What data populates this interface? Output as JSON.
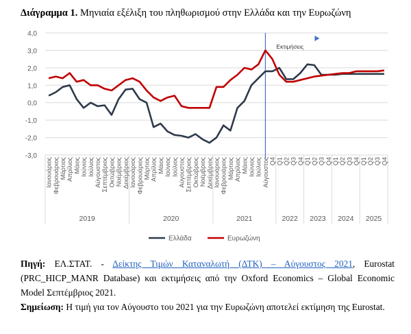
{
  "title": {
    "bold": "Διάγραμμα 1.",
    "text": " Μηνιαία  εξέλιξη του πληθωρισμού στην Ελλάδα και την Ευρωζώνη"
  },
  "chart_data": {
    "type": "line",
    "ylim": [
      -3,
      4
    ],
    "yticks": [
      "4,0",
      "3,0",
      "2,0",
      "1,0",
      "0,0",
      "-1,0",
      "-2,0",
      "-3,0"
    ],
    "ytick_values": [
      4,
      3,
      2,
      1,
      0,
      -1,
      -2,
      -3
    ],
    "grid": true,
    "legend_position": "bottom",
    "annotation": "Εκτιμήσεις",
    "forecast_start_category": "Αύγουστος 2021",
    "categories": [
      "Ιανουάριος",
      "Φεβρουάριος",
      "Μάρτιος",
      "Απρίλιος",
      "Μάιος",
      "Ιούνιος",
      "Ιούλιος",
      "Αύγουστος",
      "Σεπτέμβριος",
      "Οκτώβριος",
      "Νοέμβριος",
      "Δεκέμβριος",
      "Ιανουάριος",
      "Φεβρουάριος",
      "Μάρτιος",
      "Απρίλιος",
      "Μάιος",
      "Ιούνιος",
      "Ιούλιος",
      "Αύγουστος",
      "Σεπτέμβριος",
      "Οκτώβριος",
      "Νοέμβριος",
      "Δεκέμβριος",
      "Ιανουάριος",
      "Φεβρουάριος",
      "Μάρτιος",
      "Απρίλιος",
      "Μάιος",
      "Ιούνιος",
      "Ιούλιος",
      "Αύγουστος",
      "Q4",
      "Q1",
      "Q2",
      "Q3",
      "Q4",
      "Q1",
      "Q2",
      "Q3",
      "Q4",
      "Q1",
      "Q2",
      "Q3",
      "Q4",
      "Q1",
      "Q2",
      "Q3",
      "Q4"
    ],
    "groups": [
      {
        "label": "2019",
        "count": 12
      },
      {
        "label": "2020",
        "count": 12
      },
      {
        "label": "2021",
        "count": 9
      },
      {
        "label": "2022",
        "count": 4
      },
      {
        "label": "2023",
        "count": 4
      },
      {
        "label": "2024",
        "count": 4
      },
      {
        "label": "2025",
        "count": 4
      }
    ],
    "series": [
      {
        "name": "Ελλάδα",
        "color": "#2e3a4b",
        "values": [
          0.4,
          0.6,
          0.9,
          1.0,
          0.2,
          -0.3,
          0.0,
          -0.2,
          -0.15,
          -0.7,
          0.2,
          0.75,
          0.8,
          0.2,
          0.0,
          -1.4,
          -1.2,
          -1.65,
          -1.85,
          -1.9,
          -2.0,
          -1.8,
          -2.1,
          -2.3,
          -2.0,
          -1.3,
          -1.6,
          -0.3,
          0.1,
          1.0,
          1.4,
          1.8,
          1.8,
          2.0,
          1.35,
          1.35,
          1.7,
          2.2,
          2.15,
          1.6,
          1.6,
          1.6,
          1.65,
          1.65,
          1.65,
          1.65,
          1.65,
          1.65,
          1.65
        ]
      },
      {
        "name": "Ευρωζώνη",
        "color": "#c00000",
        "values": [
          1.4,
          1.5,
          1.4,
          1.7,
          1.2,
          1.3,
          1.0,
          1.0,
          0.8,
          0.7,
          1.0,
          1.3,
          1.4,
          1.2,
          0.7,
          0.3,
          0.1,
          0.3,
          0.4,
          -0.2,
          -0.3,
          -0.3,
          -0.3,
          -0.3,
          0.9,
          0.9,
          1.3,
          1.6,
          2.0,
          1.9,
          2.2,
          3.0,
          2.5,
          1.6,
          1.2,
          1.2,
          1.3,
          1.4,
          1.5,
          1.55,
          1.6,
          1.65,
          1.7,
          1.7,
          1.8,
          1.8,
          1.8,
          1.8,
          1.85
        ]
      }
    ]
  },
  "notes": {
    "source_label": "Πηγή:",
    "source_pre": " ΕΛ.ΣΤΑΤ. -  ",
    "source_link": "Δείκτης Τιμών Καταναλωτή (ΔΤΚ) – Αύγουστος 2021",
    "source_post": ", Eurostat (PRC_HICP_MANR Database) και εκτιμήσεις από την Oxford Economics – Global Economic Model Σεπτέμβριος 2021.",
    "note_label": "Σημείωση:",
    "note_text": " Η τιμή για τον Αύγουστο του 2021 για την Ευρωζώνη αποτελεί εκτίμηση της Eurostat."
  }
}
